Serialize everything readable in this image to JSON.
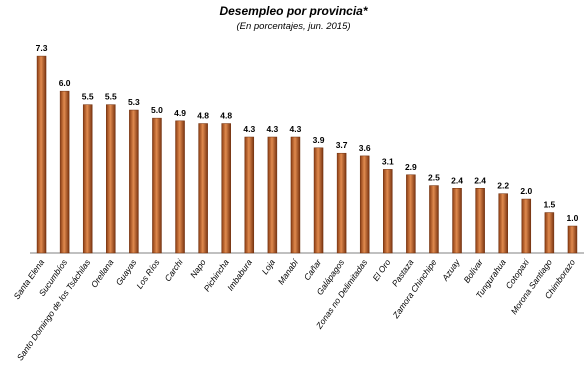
{
  "chart_data": {
    "type": "bar",
    "title": "Desempleo por provincia*",
    "subtitle": "(En porcentajes, jun. 2015)",
    "xlabel": "",
    "ylabel": "",
    "categories": [
      "Santa Elena",
      "Sucumbíos",
      "Santo Domingo de los Tsáchilas",
      "Orellana",
      "Guayas",
      "Los Ríos",
      "Carchi",
      "Napo",
      "Pichincha",
      "Imbabura",
      "Loja",
      "Manabí",
      "Cañar",
      "Galápagos",
      "Zonas no Delimitadas",
      "El Oro",
      "Pastaza",
      "Zamora Chinchipe",
      "Azuay",
      "Bolívar",
      "Tungurahua",
      "Cotopaxi",
      "Morona Santiago",
      "Chimborazo"
    ],
    "values": [
      7.3,
      6.0,
      5.5,
      5.5,
      5.3,
      5.0,
      4.9,
      4.8,
      4.8,
      4.3,
      4.3,
      4.3,
      3.9,
      3.7,
      3.6,
      3.1,
      2.9,
      2.5,
      2.4,
      2.4,
      2.2,
      2.0,
      1.5,
      1.0
    ],
    "value_labels": [
      "7.3",
      "6.0",
      "5.5",
      "5.5",
      "5.3",
      "5.0",
      "4.9",
      "4.8",
      "4.8",
      "4.3",
      "4.3",
      "4.3",
      "3.9",
      "3.7",
      "3.6",
      "3.1",
      "2.9",
      "2.5",
      "2.4",
      "2.4",
      "2.2",
      "2.0",
      "1.5",
      "1.0"
    ],
    "ylim": [
      0,
      7.6
    ],
    "grid": false,
    "bar_color": "#c0642a"
  }
}
